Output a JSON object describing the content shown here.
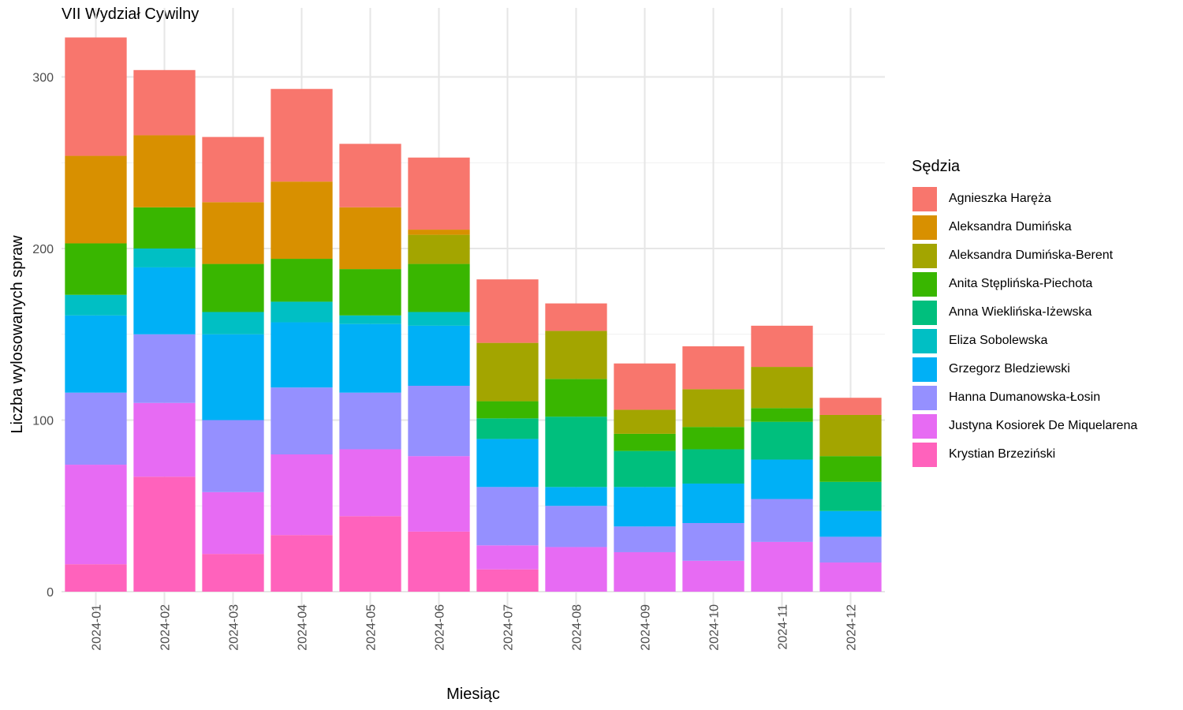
{
  "title": "VII Wydział Cywilny",
  "chart_data": {
    "type": "bar",
    "stacked": true,
    "title": "VII Wydział Cywilny",
    "xlabel": "Miesiąc",
    "ylabel": "Liczba wylosowanych spraw",
    "ylim": [
      0,
      325
    ],
    "yticks": [
      0,
      100,
      200,
      300
    ],
    "grid": true,
    "legend_title": "Sędzia",
    "legend_position": "right",
    "categories": [
      "2024-01",
      "2024-02",
      "2024-03",
      "2024-04",
      "2024-05",
      "2024-06",
      "2024-07",
      "2024-08",
      "2024-09",
      "2024-10",
      "2024-11",
      "2024-12"
    ],
    "series": [
      {
        "name": "Krystian Brzeziński",
        "color": "#FF62BC",
        "values": [
          16,
          67,
          22,
          33,
          44,
          35,
          13,
          0,
          0,
          0,
          0,
          0
        ]
      },
      {
        "name": "Justyna Kosiorek De Miquelarena",
        "color": "#E76BF3",
        "values": [
          58,
          43,
          36,
          47,
          39,
          44,
          14,
          26,
          23,
          18,
          29,
          17
        ]
      },
      {
        "name": "Hanna Dumanowska-Łosin",
        "color": "#9590FF",
        "values": [
          42,
          40,
          42,
          39,
          33,
          41,
          34,
          24,
          15,
          22,
          25,
          15
        ]
      },
      {
        "name": "Grzegorz Bledziewski",
        "color": "#00B0F6",
        "values": [
          45,
          39,
          50,
          38,
          40,
          35,
          28,
          11,
          23,
          23,
          23,
          15
        ]
      },
      {
        "name": "Eliza Sobolewska",
        "color": "#00BFC4",
        "values": [
          12,
          11,
          13,
          12,
          5,
          8,
          0,
          0,
          0,
          0,
          0,
          0
        ]
      },
      {
        "name": "Anna Wieklińska-Iżewska",
        "color": "#00BF7D",
        "values": [
          0,
          0,
          0,
          0,
          0,
          0,
          12,
          41,
          21,
          20,
          22,
          17
        ]
      },
      {
        "name": "Anita Stęplińska-Piechota",
        "color": "#39B600",
        "values": [
          30,
          24,
          28,
          25,
          27,
          28,
          10,
          22,
          10,
          13,
          8,
          15
        ]
      },
      {
        "name": "Aleksandra Dumińska-Berent",
        "color": "#A3A500",
        "values": [
          0,
          0,
          0,
          0,
          0,
          17,
          34,
          28,
          14,
          22,
          24,
          24
        ]
      },
      {
        "name": "Aleksandra Dumińska",
        "color": "#D89000",
        "values": [
          51,
          42,
          36,
          45,
          36,
          3,
          0,
          0,
          0,
          0,
          0,
          0
        ]
      },
      {
        "name": "Agnieszka Haręża",
        "color": "#F8766D",
        "values": [
          69,
          38,
          38,
          54,
          37,
          42,
          37,
          16,
          27,
          25,
          24,
          10
        ]
      }
    ],
    "legend_order": [
      "Agnieszka Haręża",
      "Aleksandra Dumińska",
      "Aleksandra Dumińska-Berent",
      "Anita Stęplińska-Piechota",
      "Anna Wieklińska-Iżewska",
      "Eliza Sobolewska",
      "Grzegorz Bledziewski",
      "Hanna Dumanowska-Łosin",
      "Justyna Kosiorek De Miquelarena",
      "Krystian Brzeziński"
    ]
  }
}
